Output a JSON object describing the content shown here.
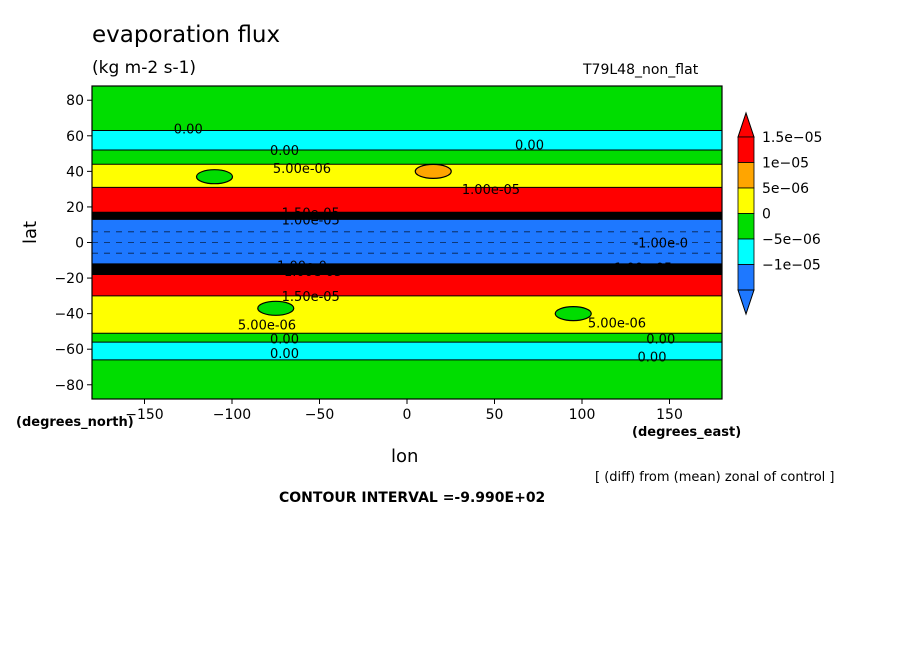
{
  "header": {
    "title": "evaporation flux",
    "units": "(kg m-2 s-1)",
    "run_label": "T79L48_non_flat"
  },
  "footer": {
    "x_unit": "(degrees_east)",
    "y_unit": "(degrees_north)",
    "note": "[ (diff) from (mean) zonal of control ]",
    "contour_interval": "CONTOUR INTERVAL =-9.990E+02"
  },
  "chart_data": {
    "type": "heatmap",
    "title": "evaporation flux",
    "xlabel": "lon",
    "ylabel": "lat",
    "xlim": [
      -180,
      180
    ],
    "ylim": [
      -88,
      88
    ],
    "x_ticks": [
      -150,
      -100,
      -50,
      0,
      50,
      100,
      150
    ],
    "y_ticks": [
      80,
      60,
      40,
      20,
      0,
      -20,
      -40,
      -60,
      -80
    ],
    "colorbar": {
      "levels": [
        "1.5e-05",
        "1e-05",
        "5e-06",
        "0",
        "-5e-06",
        "-1e-05"
      ],
      "colors": [
        "#ff0000",
        "#ffa500",
        "#ffff00",
        "#00dd00",
        "#00ffff",
        "#1e78ff"
      ]
    },
    "bands": [
      {
        "lat_top": 88,
        "lat_bottom": 63,
        "color": "#00dd00"
      },
      {
        "lat_top": 63,
        "lat_bottom": 52,
        "color": "#00ffff"
      },
      {
        "lat_top": 52,
        "lat_bottom": 44,
        "color": "#00dd00"
      },
      {
        "lat_top": 44,
        "lat_bottom": 31,
        "color": "#ffff00"
      },
      {
        "lat_top": 31,
        "lat_bottom": 17,
        "color": "#ff0000"
      },
      {
        "lat_top": 17,
        "lat_bottom": 13,
        "color": "#000000"
      },
      {
        "lat_top": 13,
        "lat_bottom": -12,
        "color": "#1e78ff"
      },
      {
        "lat_top": -12,
        "lat_bottom": -18,
        "color": "#000000"
      },
      {
        "lat_top": -18,
        "lat_bottom": -30,
        "color": "#ff0000"
      },
      {
        "lat_top": -30,
        "lat_bottom": -51,
        "color": "#ffff00"
      },
      {
        "lat_top": -51,
        "lat_bottom": -56,
        "color": "#00dd00"
      },
      {
        "lat_top": -56,
        "lat_bottom": -66,
        "color": "#00ffff"
      },
      {
        "lat_top": -66,
        "lat_bottom": -88,
        "color": "#00dd00"
      }
    ],
    "patches": [
      {
        "lon": 15,
        "lat": 40,
        "color": "#ffa500"
      },
      {
        "lon": -110,
        "lat": 37,
        "color": "#00dd00"
      },
      {
        "lon": -75,
        "lat": -37,
        "color": "#00dd00"
      },
      {
        "lon": 95,
        "lat": -40,
        "color": "#00dd00"
      }
    ],
    "contour_labels": [
      {
        "text": "0.00",
        "lon": -125,
        "lat": 64
      },
      {
        "text": "0.00",
        "lon": 70,
        "lat": 55
      },
      {
        "text": "0.00",
        "lon": -70,
        "lat": 52
      },
      {
        "text": "5.00e-06",
        "lon": -60,
        "lat": 42
      },
      {
        "text": "1.00e-05",
        "lon": 48,
        "lat": 30
      },
      {
        "text": "1.50e-05",
        "lon": -55,
        "lat": 17
      },
      {
        "text": "1.00e-05",
        "lon": -55,
        "lat": 13
      },
      {
        "text": "-1.00e-0",
        "lon": 145,
        "lat": 0
      },
      {
        "text": "1.00e-0",
        "lon": -60,
        "lat": -13
      },
      {
        "text": "-1.00e-05",
        "lon": -55,
        "lat": -16
      },
      {
        "text": "1.00e-05",
        "lon": 135,
        "lat": -14
      },
      {
        "text": "1.50e-05",
        "lon": -55,
        "lat": -30
      },
      {
        "text": "5.00e-06",
        "lon": -80,
        "lat": -46
      },
      {
        "text": "5.00e-06",
        "lon": 120,
        "lat": -45
      },
      {
        "text": "0.00",
        "lon": -70,
        "lat": -54
      },
      {
        "text": "0.00",
        "lon": 145,
        "lat": -54
      },
      {
        "text": "0.00",
        "lon": -70,
        "lat": -62
      },
      {
        "text": "0.00",
        "lon": 140,
        "lat": -64
      }
    ]
  }
}
